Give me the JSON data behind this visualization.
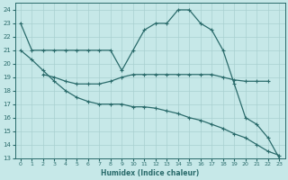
{
  "xlabel": "Humidex (Indice chaleur)",
  "xlim": [
    -0.5,
    23.5
  ],
  "ylim": [
    13,
    24.5
  ],
  "yticks": [
    13,
    14,
    15,
    16,
    17,
    18,
    19,
    20,
    21,
    22,
    23,
    24
  ],
  "xticks": [
    0,
    1,
    2,
    3,
    4,
    5,
    6,
    7,
    8,
    9,
    10,
    11,
    12,
    13,
    14,
    15,
    16,
    17,
    18,
    19,
    20,
    21,
    22,
    23
  ],
  "bg_color": "#c6e8e8",
  "grid_color": "#a8d0d0",
  "line_color": "#2a6b6b",
  "line1_x": [
    0,
    1,
    2,
    3,
    4,
    5,
    6,
    7,
    8,
    9,
    10,
    11,
    12,
    13,
    14,
    15,
    16,
    17,
    18,
    19,
    20,
    21,
    22,
    23
  ],
  "line1_y": [
    23,
    21,
    21,
    21,
    21,
    21,
    21,
    21,
    21,
    19.5,
    21,
    22.5,
    23,
    23,
    24,
    24,
    23,
    22.5,
    21,
    18.5,
    16,
    15.5,
    14.5,
    13
  ],
  "line2_x": [
    2,
    3,
    4,
    5,
    6,
    7,
    8,
    9,
    10,
    11,
    12,
    13,
    14,
    15,
    16,
    17,
    18,
    19,
    20,
    21,
    22
  ],
  "line2_y": [
    19.2,
    19.0,
    18.7,
    18.5,
    18.5,
    18.5,
    18.7,
    19.0,
    19.2,
    19.2,
    19.2,
    19.2,
    19.2,
    19.2,
    19.2,
    19.2,
    19.0,
    18.8,
    18.7,
    18.7,
    18.7
  ],
  "line3_x": [
    0,
    1,
    2,
    3,
    4,
    5,
    6,
    7,
    8,
    9,
    10,
    11,
    12,
    13,
    14,
    15,
    16,
    17,
    18,
    19,
    20,
    21,
    22,
    23
  ],
  "line3_y": [
    21,
    20.3,
    19.5,
    18.7,
    18.0,
    17.5,
    17.2,
    17.0,
    17.0,
    17.0,
    16.8,
    16.8,
    16.7,
    16.5,
    16.3,
    16.0,
    15.8,
    15.5,
    15.2,
    14.8,
    14.5,
    14.0,
    13.5,
    13.2
  ]
}
